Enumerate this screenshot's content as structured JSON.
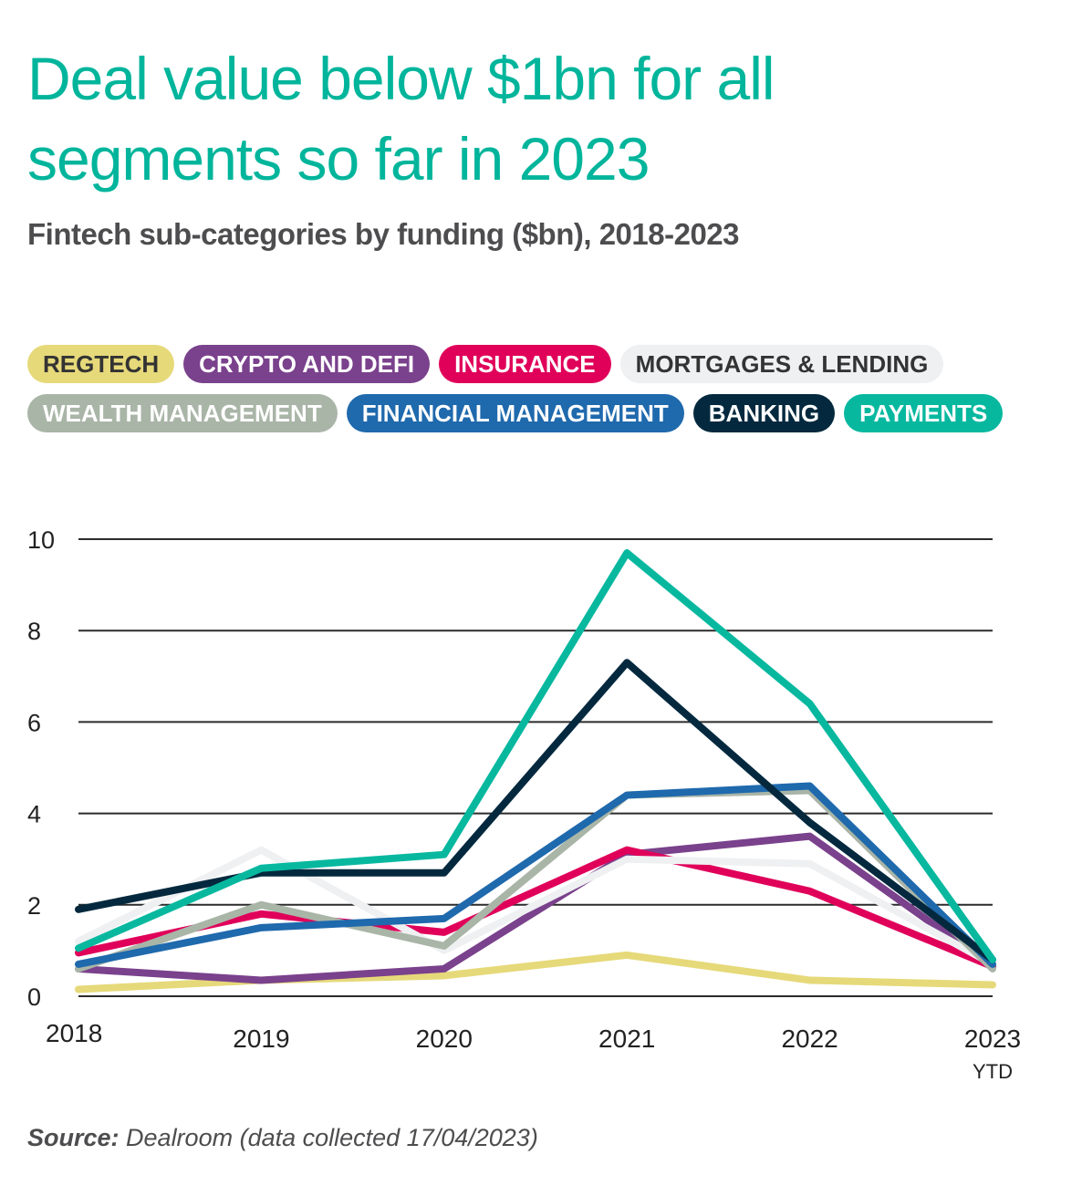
{
  "title": "Deal value below $1bn for all segments so far in 2023",
  "subtitle": "Fintech sub-categories by funding ($bn), 2018-2023",
  "source_label": "Source:",
  "source_text": " Dealroom (data collected 17/04/2023)",
  "chart_data": {
    "type": "line",
    "title": "Fintech sub-categories by funding ($bn), 2018-2023",
    "categories": [
      "2018",
      "2019",
      "2020",
      "2021",
      "2022",
      "2023"
    ],
    "category_sublabels": [
      "",
      "",
      "",
      "",
      "",
      "YTD"
    ],
    "ylim": [
      0,
      10
    ],
    "yticks": [
      0,
      2,
      4,
      6,
      8,
      10
    ],
    "grid": true,
    "legend_placement": "top",
    "series": [
      {
        "name": "REGTECH",
        "color": "#e6d97a",
        "text_color": "#333333",
        "values": [
          0.15,
          0.35,
          0.45,
          0.9,
          0.35,
          0.25
        ]
      },
      {
        "name": "CRYPTO AND DEFI",
        "color": "#7a418c",
        "text_color": "#ffffff",
        "values": [
          0.6,
          0.35,
          0.6,
          3.1,
          3.5,
          0.65
        ]
      },
      {
        "name": "INSURANCE",
        "color": "#e0005a",
        "text_color": "#ffffff",
        "values": [
          0.95,
          1.8,
          1.4,
          3.2,
          2.3,
          0.65
        ]
      },
      {
        "name": "MORTGAGES & LENDING",
        "color": "#eff0f2",
        "text_color": "#333333",
        "values": [
          1.2,
          3.2,
          1.0,
          3.0,
          2.9,
          0.7
        ]
      },
      {
        "name": "WEALTH MANAGEMENT",
        "color": "#a9b5a7",
        "text_color": "#ffffff",
        "values": [
          0.6,
          2.0,
          1.1,
          4.4,
          4.5,
          0.6
        ]
      },
      {
        "name": "FINANCIAL MANAGEMENT",
        "color": "#1f69ad",
        "text_color": "#ffffff",
        "values": [
          0.7,
          1.5,
          1.7,
          4.4,
          4.6,
          0.7
        ]
      },
      {
        "name": "BANKING",
        "color": "#04293e",
        "text_color": "#ffffff",
        "values": [
          1.9,
          2.7,
          2.7,
          7.3,
          3.8,
          0.8
        ]
      },
      {
        "name": "PAYMENTS",
        "color": "#07b89f",
        "text_color": "#ffffff",
        "values": [
          1.05,
          2.8,
          3.1,
          9.7,
          6.4,
          0.8
        ]
      }
    ]
  }
}
